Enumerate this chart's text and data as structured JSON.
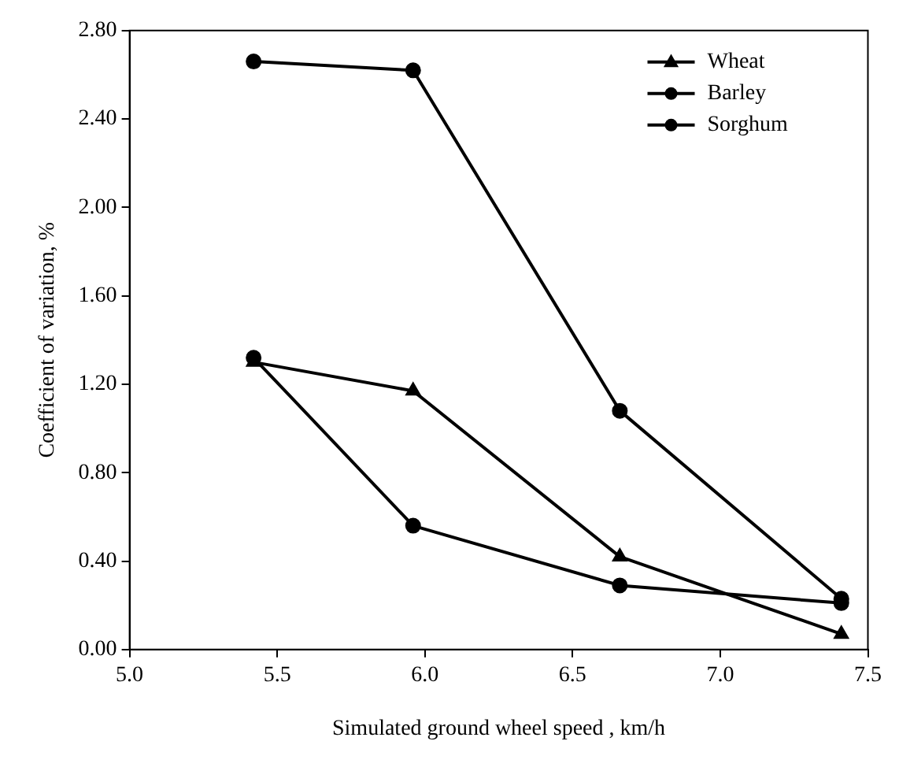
{
  "chart_data": {
    "type": "line",
    "xlabel": "Simulated ground wheel speed , km/h",
    "ylabel": "Coefficient of variation, %",
    "xlim": [
      5.0,
      7.5
    ],
    "xticks": [
      {
        "value": 5,
        "label": "5.0"
      },
      {
        "value": 5.5,
        "label": "5.5"
      },
      {
        "value": 6,
        "label": "6.0"
      },
      {
        "value": 6.5,
        "label": "6.5"
      },
      {
        "value": 7,
        "label": "7.0"
      },
      {
        "value": 7.5,
        "label": "7.5"
      }
    ],
    "ylim": [
      0,
      2.8
    ],
    "yticks": [
      {
        "value": 0,
        "label": "0.00"
      },
      {
        "value": 0.4,
        "label": "0.40"
      },
      {
        "value": 0.8,
        "label": "0.80"
      },
      {
        "value": 1.2,
        "label": "1.20"
      },
      {
        "value": 1.6,
        "label": "1.60"
      },
      {
        "value": 2.0,
        "label": "2.00"
      },
      {
        "value": 2.4,
        "label": "2.40"
      },
      {
        "value": 2.8,
        "label": "2.80"
      }
    ],
    "x": [
      5.42,
      5.96,
      6.66,
      7.41
    ],
    "series": [
      {
        "name": "Wheat",
        "color": "#000000",
        "marker": "triangle",
        "values": [
          1.3,
          1.17,
          0.42,
          0.07
        ]
      },
      {
        "name": "Barley",
        "color": "#000000",
        "marker": "circle",
        "values": [
          1.32,
          0.56,
          0.29,
          0.21
        ]
      },
      {
        "name": "Sorghum",
        "color": "#000000",
        "marker": "circle",
        "values": [
          2.66,
          2.62,
          1.08,
          0.23
        ]
      }
    ],
    "grid": false,
    "legend": "top right",
    "line_style": "solid"
  }
}
